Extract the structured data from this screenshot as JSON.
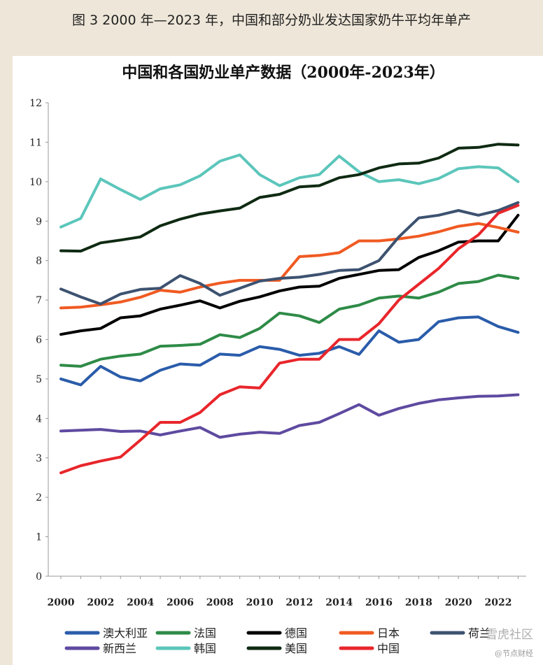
{
  "caption": "图 3  2000 年—2023 年，中国和部分奶业发达国家奶牛平均年单产",
  "watermark": [
    "雪虎社区",
    "@节点财经"
  ],
  "colors": {
    "background": "#eee6d8",
    "panel": "#ffffff"
  },
  "chart_data": {
    "type": "line",
    "title": "中国和各国奶业单产数据（2000年-2023年）",
    "xlabel": "",
    "ylabel": "",
    "ylim": [
      0,
      12
    ],
    "yticks": [
      0,
      1,
      2,
      3,
      4,
      5,
      6,
      7,
      8,
      9,
      10,
      11,
      12
    ],
    "xticks": [
      2000,
      2002,
      2004,
      2006,
      2008,
      2010,
      2012,
      2014,
      2016,
      2018,
      2020,
      2022
    ],
    "grid": false,
    "legend": "bottom",
    "x": [
      2000,
      2001,
      2002,
      2003,
      2004,
      2005,
      2006,
      2007,
      2008,
      2009,
      2010,
      2011,
      2012,
      2013,
      2014,
      2015,
      2016,
      2017,
      2018,
      2019,
      2020,
      2021,
      2022,
      2023
    ],
    "series": [
      {
        "name": "澳大利亚",
        "color": "#2a5caa",
        "values": [
          5.0,
          4.85,
          5.32,
          5.05,
          4.95,
          5.22,
          5.38,
          5.35,
          5.63,
          5.6,
          5.82,
          5.75,
          5.6,
          5.65,
          5.82,
          5.62,
          6.22,
          5.93,
          6.0,
          6.45,
          6.55,
          6.57,
          6.33,
          6.18
        ]
      },
      {
        "name": "法国",
        "color": "#2e8b47",
        "values": [
          5.35,
          5.32,
          5.5,
          5.58,
          5.63,
          5.83,
          5.85,
          5.88,
          6.12,
          6.05,
          6.28,
          6.67,
          6.6,
          6.43,
          6.77,
          6.87,
          7.05,
          7.1,
          7.05,
          7.2,
          7.42,
          7.47,
          7.63,
          7.55
        ]
      },
      {
        "name": "德国",
        "color": "#000000",
        "values": [
          6.13,
          6.22,
          6.28,
          6.55,
          6.6,
          6.77,
          6.87,
          6.98,
          6.8,
          6.97,
          7.08,
          7.23,
          7.33,
          7.35,
          7.55,
          7.65,
          7.75,
          7.77,
          8.08,
          8.25,
          8.47,
          8.5,
          8.5,
          9.15
        ]
      },
      {
        "name": "日本",
        "color": "#f05a22",
        "values": [
          6.8,
          6.82,
          6.88,
          6.95,
          7.07,
          7.25,
          7.2,
          7.33,
          7.43,
          7.5,
          7.5,
          7.5,
          8.1,
          8.13,
          8.2,
          8.5,
          8.5,
          8.55,
          8.62,
          8.73,
          8.87,
          8.94,
          8.84,
          8.72
        ]
      },
      {
        "name": "荷兰",
        "color": "#3d5270",
        "values": [
          7.28,
          7.08,
          6.9,
          7.15,
          7.27,
          7.3,
          7.62,
          7.42,
          7.12,
          7.3,
          7.48,
          7.55,
          7.58,
          7.65,
          7.75,
          7.77,
          8.0,
          8.6,
          9.08,
          9.15,
          9.27,
          9.15,
          9.27,
          9.47
        ]
      },
      {
        "name": "新西兰",
        "color": "#5e4aa0",
        "values": [
          3.68,
          3.7,
          3.72,
          3.67,
          3.68,
          3.58,
          3.68,
          3.77,
          3.52,
          3.6,
          3.65,
          3.62,
          3.82,
          3.9,
          4.12,
          4.35,
          4.08,
          4.25,
          4.38,
          4.47,
          4.52,
          4.56,
          4.57,
          4.6
        ]
      },
      {
        "name": "韩国",
        "color": "#5cc6bb",
        "values": [
          8.85,
          9.07,
          10.07,
          9.8,
          9.55,
          9.82,
          9.92,
          10.15,
          10.52,
          10.68,
          10.18,
          9.9,
          10.1,
          10.18,
          10.65,
          10.25,
          10.0,
          10.05,
          9.95,
          10.08,
          10.33,
          10.38,
          10.35,
          10.0
        ]
      },
      {
        "name": "美国",
        "color": "#0f2a12",
        "values": [
          8.25,
          8.24,
          8.45,
          8.52,
          8.6,
          8.88,
          9.05,
          9.18,
          9.26,
          9.33,
          9.6,
          9.68,
          9.87,
          9.9,
          10.1,
          10.18,
          10.35,
          10.45,
          10.47,
          10.6,
          10.85,
          10.87,
          10.95,
          10.93
        ]
      },
      {
        "name": "中国",
        "color": "#e8262b",
        "values": [
          2.62,
          2.8,
          2.92,
          3.02,
          3.45,
          3.9,
          3.9,
          4.15,
          4.6,
          4.8,
          4.77,
          5.4,
          5.5,
          5.5,
          6.0,
          6.0,
          6.4,
          7.0,
          7.4,
          7.8,
          8.3,
          8.65,
          9.2,
          9.4
        ]
      }
    ]
  }
}
